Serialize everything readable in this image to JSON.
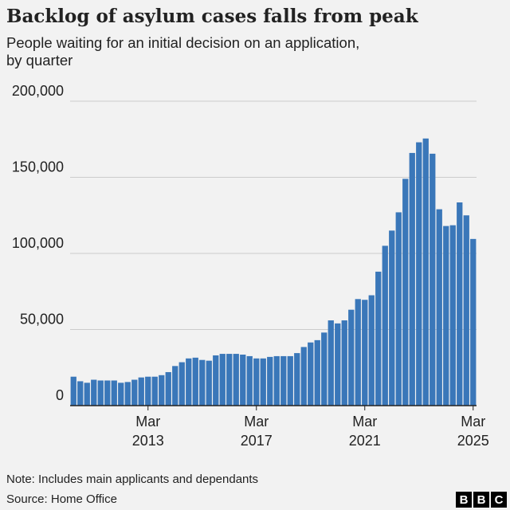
{
  "chart_data": {
    "type": "bar",
    "title": "Backlog of asylum cases falls from peak",
    "subtitle": "People waiting for an initial decision on an application, by quarter",
    "categories": [
      null,
      null,
      null,
      null,
      null,
      null,
      null,
      null,
      null,
      null,
      null,
      "Mar 2013",
      null,
      null,
      null,
      null,
      null,
      null,
      null,
      null,
      null,
      null,
      null,
      null,
      null,
      null,
      null,
      "Mar 2017",
      null,
      null,
      null,
      null,
      null,
      null,
      null,
      null,
      null,
      null,
      null,
      null,
      null,
      null,
      null,
      "Mar 2021",
      null,
      null,
      null,
      null,
      null,
      null,
      null,
      null,
      null,
      null,
      null,
      null,
      null,
      null,
      null,
      "Mar 2025"
    ],
    "values": [
      19000,
      16000,
      15000,
      17000,
      16500,
      16500,
      16500,
      15000,
      15500,
      17000,
      18500,
      19000,
      19000,
      20000,
      22000,
      26000,
      28500,
      31000,
      31500,
      30000,
      29500,
      33000,
      34000,
      34000,
      34000,
      33500,
      32500,
      31000,
      31000,
      32000,
      32500,
      32500,
      32500,
      34500,
      38500,
      41500,
      43000,
      48000,
      56000,
      54000,
      56000,
      63000,
      70000,
      69500,
      72500,
      88000,
      105000,
      115000,
      127000,
      149000,
      166000,
      173000,
      175500,
      165500,
      129000,
      118000,
      118500,
      133500,
      125000,
      109500
    ],
    "color": "#3a77b9",
    "ylim": [
      0,
      200000
    ],
    "yticks": [
      0,
      {
        "value": 50000,
        "label": "50,000"
      },
      {
        "value": 100000,
        "label": "100,000"
      },
      {
        "value": 150000,
        "label": "150,000"
      },
      {
        "value": 200000,
        "label": "200,000"
      }
    ],
    "grid": true,
    "note": "Note: Includes main applicants and dependants",
    "source": "Source: Home Office",
    "logo": [
      "B",
      "B",
      "C"
    ]
  }
}
